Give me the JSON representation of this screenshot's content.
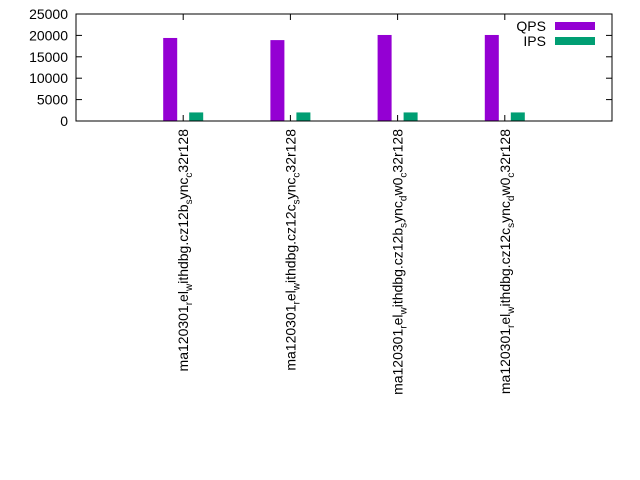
{
  "chart_data": {
    "type": "bar",
    "title": "",
    "xlabel": "",
    "ylabel": "",
    "ylim": [
      0,
      25000
    ],
    "yticks": [
      0,
      5000,
      10000,
      15000,
      20000,
      25000
    ],
    "grid": false,
    "legend_position": "top-right",
    "categories": [
      "ma120301_el_withdbg.cz12b_sync_c32r128",
      "ma120301_el_withdbg.cz12c_sync_c32r128",
      "ma120301_el_withdbg.cz12b_sync_dw0_c32r128",
      "ma120301_el_withdbg.cz12c_sync_dw0_c32r128"
    ],
    "category_display": [
      [
        {
          "t": "ma120301"
        },
        {
          "t": "r",
          "sub": true
        },
        {
          "t": "el"
        },
        {
          "t": "w",
          "sub": true
        },
        {
          "t": "ithdbg.cz12b"
        },
        {
          "t": "s",
          "sub": true
        },
        {
          "t": "ync"
        },
        {
          "t": "c",
          "sub": true
        },
        {
          "t": "32r128"
        }
      ],
      [
        {
          "t": "ma120301"
        },
        {
          "t": "r",
          "sub": true
        },
        {
          "t": "el"
        },
        {
          "t": "w",
          "sub": true
        },
        {
          "t": "ithdbg.cz12c"
        },
        {
          "t": "s",
          "sub": true
        },
        {
          "t": "ync"
        },
        {
          "t": "c",
          "sub": true
        },
        {
          "t": "32r128"
        }
      ],
      [
        {
          "t": "ma120301"
        },
        {
          "t": "r",
          "sub": true
        },
        {
          "t": "el"
        },
        {
          "t": "w",
          "sub": true
        },
        {
          "t": "ithdbg.cz12b"
        },
        {
          "t": "s",
          "sub": true
        },
        {
          "t": "ync"
        },
        {
          "t": "d",
          "sub": true
        },
        {
          "t": "w0"
        },
        {
          "t": "c",
          "sub": true
        },
        {
          "t": "32r128"
        }
      ],
      [
        {
          "t": "ma120301"
        },
        {
          "t": "r",
          "sub": true
        },
        {
          "t": "el"
        },
        {
          "t": "w",
          "sub": true
        },
        {
          "t": "ithdbg.cz12c"
        },
        {
          "t": "s",
          "sub": true
        },
        {
          "t": "ync"
        },
        {
          "t": "d",
          "sub": true
        },
        {
          "t": "w0"
        },
        {
          "t": "c",
          "sub": true
        },
        {
          "t": "32r128"
        }
      ]
    ],
    "series": [
      {
        "name": "QPS",
        "color": "#9400d3",
        "values": [
          19400,
          18900,
          20100,
          20100
        ]
      },
      {
        "name": "IPS",
        "color": "#009e73",
        "values": [
          2000,
          2000,
          2000,
          2000
        ]
      }
    ]
  }
}
